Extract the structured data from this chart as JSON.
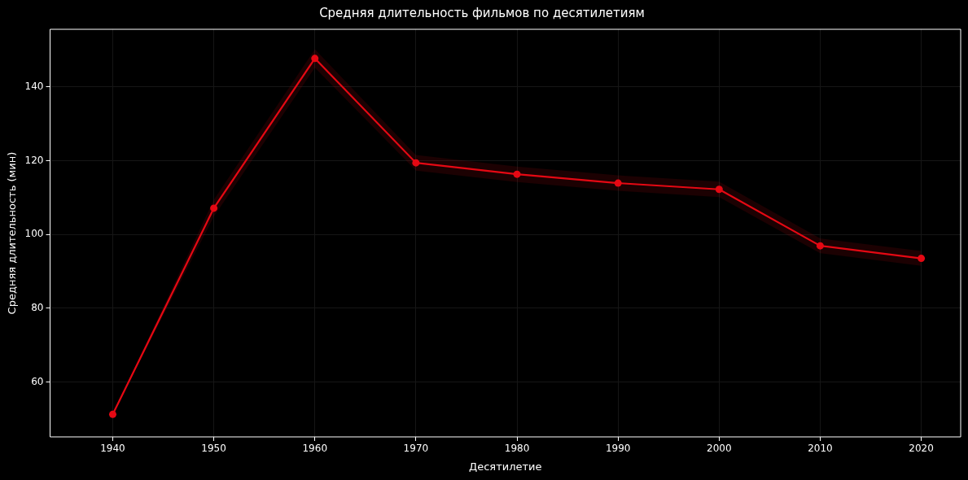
{
  "chart_data": {
    "type": "line",
    "title": "Средняя длительность фильмов по десятилетиям",
    "xlabel": "Десятилетие",
    "ylabel": "Средняя длительность (мин)",
    "x": [
      1940,
      1950,
      1960,
      1970,
      1980,
      1990,
      2000,
      2010,
      2020
    ],
    "series": [
      {
        "color": "#e50914",
        "values": [
          51.2,
          107.1,
          147.7,
          119.4,
          116.3,
          113.9,
          112.2,
          96.9,
          93.5
        ],
        "lower": [
          51.2,
          104.8,
          145.2,
          117.3,
          114.2,
          111.8,
          110.1,
          94.9,
          91.5
        ],
        "upper": [
          51.2,
          109.4,
          150.2,
          121.5,
          118.4,
          116.0,
          114.3,
          98.9,
          95.5
        ]
      }
    ],
    "xlim": [
      1933.8,
      2023.9
    ],
    "xticks": [
      1940,
      1950,
      1960,
      1970,
      1980,
      1990,
      2000,
      2010,
      2020
    ],
    "ylim": [
      45.1,
      155.6
    ],
    "yticks": [
      60,
      80,
      100,
      120,
      140
    ],
    "grid": true,
    "marker": "circle",
    "line_style": "solid"
  }
}
